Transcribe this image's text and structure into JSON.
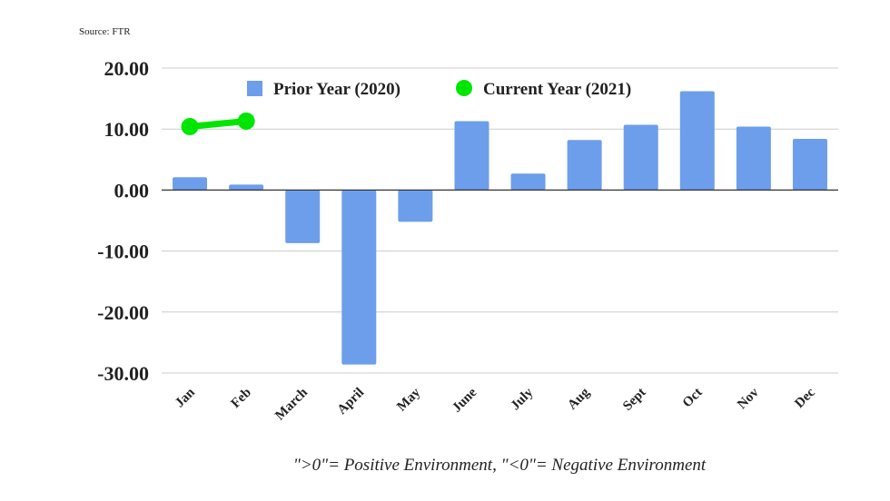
{
  "source": "Source: FTR",
  "footnote": "\">0\"= Positive Environment, \"<0\"= Negative Environment",
  "chart_data": {
    "type": "bar",
    "title": "",
    "xlabel": "",
    "ylabel": "",
    "categories": [
      "Jan",
      "Feb",
      "March",
      "April",
      "May",
      "June",
      "July",
      "Aug",
      "Sept",
      "Oct",
      "Nov",
      "Dec"
    ],
    "ylim": [
      -30,
      20
    ],
    "yticks": [
      20,
      10,
      0,
      -10,
      -20,
      -30
    ],
    "ytick_labels": [
      "20.00",
      "10.00",
      "0.00",
      "-10.00",
      "-20.00",
      "-30.00"
    ],
    "grid": true,
    "legend_position": "top",
    "series": [
      {
        "name": "Prior Year (2020)",
        "type": "bar",
        "color": "#6d9eeb",
        "values": [
          2.1,
          0.9,
          -8.7,
          -28.6,
          -5.2,
          11.3,
          2.7,
          8.2,
          10.7,
          16.2,
          10.4,
          8.4
        ]
      },
      {
        "name": "Current Year (2021)",
        "type": "line",
        "color": "#00e600",
        "values": [
          10.4,
          11.3,
          null,
          null,
          null,
          null,
          null,
          null,
          null,
          null,
          null,
          null
        ]
      }
    ]
  }
}
